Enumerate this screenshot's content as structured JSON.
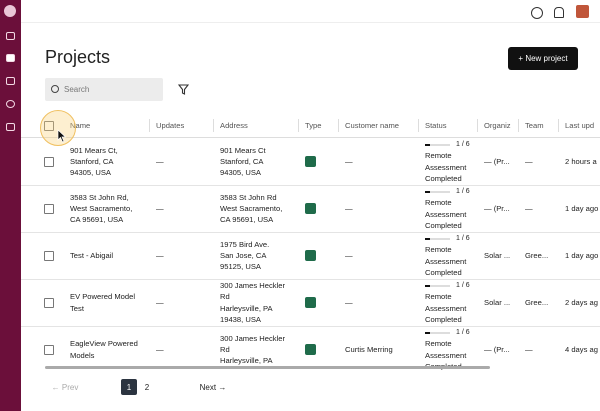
{
  "header": {
    "title": "Projects",
    "new_button": "+ New project",
    "search_placeholder": "Search"
  },
  "table": {
    "columns": [
      "Name",
      "Updates",
      "Address",
      "Type",
      "Customer name",
      "Status",
      "Organiz",
      "Team",
      "Last upd"
    ],
    "rows": [
      {
        "name": [
          "901 Mears Ct,",
          "Stanford, CA",
          "94305, USA"
        ],
        "updates": "—",
        "address": [
          "901 Mears Ct",
          "Stanford, CA",
          "94305, USA"
        ],
        "customer": "—",
        "progress": "1 / 6",
        "status": [
          "Remote",
          "Assessment",
          "Completed"
        ],
        "org": "— (Pr...",
        "team": "—",
        "last": "2 hours a"
      },
      {
        "name": [
          "3583 St John Rd,",
          "West Sacramento,",
          "CA 95691, USA"
        ],
        "updates": "—",
        "address": [
          "3583 St John Rd",
          "West Sacramento,",
          "CA 95691, USA"
        ],
        "customer": "—",
        "progress": "1 / 6",
        "status": [
          "Remote",
          "Assessment",
          "Completed"
        ],
        "org": "— (Pr...",
        "team": "—",
        "last": "1 day ago"
      },
      {
        "name": [
          "Test - Abigail"
        ],
        "updates": "—",
        "address": [
          "1975 Bird Ave.",
          "San Jose, CA",
          "95125, USA"
        ],
        "customer": "—",
        "progress": "1 / 6",
        "status": [
          "Remote",
          "Assessment",
          "Completed"
        ],
        "org": "Solar ...",
        "team": "Gree...",
        "last": "1 day ago"
      },
      {
        "name": [
          "EV Powered Model",
          "Test"
        ],
        "updates": "—",
        "address": [
          "300 James Heckler",
          "Rd",
          "Harleysville, PA",
          "19438, USA"
        ],
        "customer": "—",
        "progress": "1 / 6",
        "status": [
          "Remote",
          "Assessment",
          "Completed"
        ],
        "org": "Solar ...",
        "team": "Gree...",
        "last": "2 days ag"
      },
      {
        "name": [
          "EagleView Powered",
          "Models"
        ],
        "updates": "—",
        "address": [
          "300 James Heckler",
          "Rd",
          "Harleysville, PA"
        ],
        "customer": "Curtis Merring",
        "progress": "1 / 6",
        "status": [
          "Remote",
          "Assessment",
          "Completed"
        ],
        "org": "— (Pr...",
        "team": "—",
        "last": "4 days ag"
      }
    ]
  },
  "pagination": {
    "prev": "Prev",
    "pages": [
      "1",
      "2"
    ],
    "next": "Next"
  }
}
